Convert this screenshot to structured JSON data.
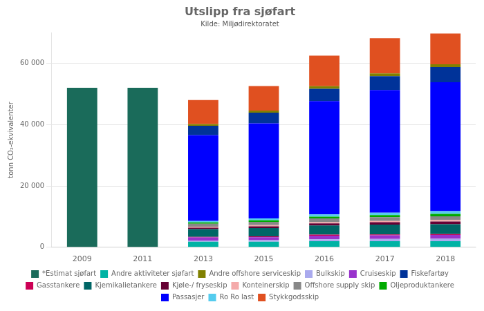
{
  "chart_data": {
    "type": "bar",
    "title": "Utslipp fra sjøfart",
    "subtitle": "Kilde: Miljødirektoratet",
    "ylabel": "tonn CO₂-ekvivalenter",
    "categories": [
      "2009",
      "2011",
      "2013",
      "2015",
      "2016",
      "2017",
      "2018"
    ],
    "stacked": true,
    "grid": "y",
    "legend": "bottom",
    "ylim": [
      0,
      70000
    ],
    "yticks": [
      0,
      {
        "value": 20000,
        "label": "20 000"
      },
      {
        "value": 40000,
        "label": "40 000"
      },
      {
        "value": 60000,
        "label": "60 000"
      }
    ],
    "series": [
      {
        "name": "Andre aktiviteter sjøfart",
        "color": "#00b3a4",
        "values": [
          0,
          0,
          1800,
          1800,
          2000,
          2000,
          2000
        ]
      },
      {
        "name": "Bulkskip",
        "color": "#aaaaee",
        "values": [
          0,
          0,
          400,
          500,
          600,
          700,
          800
        ]
      },
      {
        "name": "Cruiseskip",
        "color": "#9933cc",
        "values": [
          0,
          0,
          1000,
          1000,
          1200,
          1200,
          1200
        ]
      },
      {
        "name": "Gasstankere",
        "color": "#cc0055",
        "values": [
          0,
          0,
          200,
          250,
          300,
          300,
          300
        ]
      },
      {
        "name": "Kjemikalietankere",
        "color": "#006666",
        "values": [
          0,
          0,
          2500,
          2700,
          3000,
          3200,
          3200
        ]
      },
      {
        "name": "Kjøle-/ fryseskip",
        "color": "#660033",
        "values": [
          0,
          0,
          500,
          600,
          700,
          800,
          900
        ]
      },
      {
        "name": "Konteinerskip",
        "color": "#f4aaaa",
        "values": [
          0,
          0,
          300,
          350,
          400,
          400,
          500
        ]
      },
      {
        "name": "Offshore supply skip",
        "color": "#888888",
        "values": [
          0,
          0,
          1000,
          1100,
          1200,
          1200,
          1200
        ]
      },
      {
        "name": "Oljeproduktankere",
        "color": "#00aa00",
        "values": [
          0,
          0,
          400,
          500,
          600,
          700,
          800
        ]
      },
      {
        "name": "Ro Ro last",
        "color": "#55ccee",
        "values": [
          0,
          0,
          500,
          600,
          700,
          800,
          900
        ]
      },
      {
        "name": "*Estimat sjøfart",
        "color": "#1a6b5a",
        "values": [
          52000,
          52000,
          0,
          0,
          0,
          0,
          0
        ]
      },
      {
        "name": "Passasjer",
        "color": "#0000ff",
        "values": [
          0,
          0,
          28000,
          31000,
          37000,
          40000,
          42000
        ]
      },
      {
        "name": "Fiskefartøy",
        "color": "#003399",
        "values": [
          0,
          0,
          3000,
          3500,
          4000,
          4500,
          5000
        ]
      },
      {
        "name": "Andre offshore serviceskip",
        "color": "#808000",
        "values": [
          0,
          0,
          600,
          700,
          800,
          900,
          900
        ]
      },
      {
        "name": "Stykkgodsskip",
        "color": "#e05020",
        "values": [
          0,
          0,
          7800,
          8000,
          10000,
          11500,
          10000
        ]
      }
    ]
  }
}
